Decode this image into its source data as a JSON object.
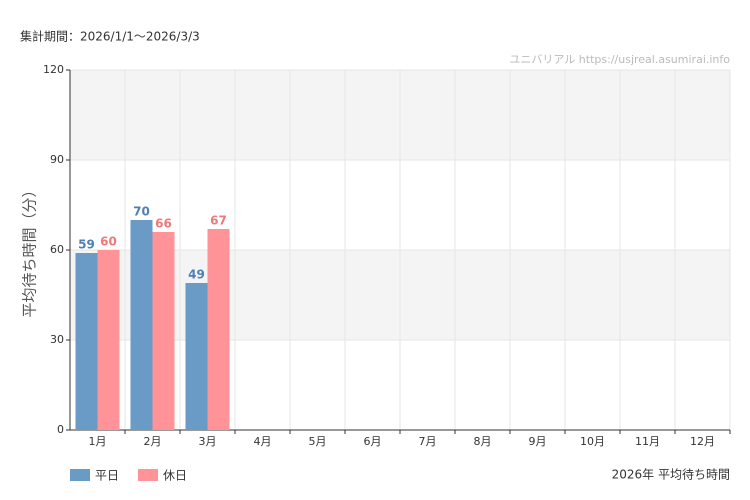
{
  "chart_data": {
    "type": "bar",
    "period": "集計期間：2026/1/1〜2026/3/3",
    "watermark": "ユニバリアル  https://usjreal.asumirai.info",
    "ylabel": "平均待ち時間（分）",
    "caption": "2026年 平均待ち時間",
    "categories": [
      "1月",
      "2月",
      "3月",
      "4月",
      "5月",
      "6月",
      "7月",
      "8月",
      "9月",
      "10月",
      "11月",
      "12月"
    ],
    "series": [
      {
        "name": "平日",
        "color": "#6a9ac6",
        "label_color": "#4e7fb5",
        "values": [
          59,
          70,
          49,
          null,
          null,
          null,
          null,
          null,
          null,
          null,
          null,
          null
        ]
      },
      {
        "name": "休日",
        "color": "#ff9398",
        "label_color": "#f07878",
        "values": [
          60,
          66,
          67,
          null,
          null,
          null,
          null,
          null,
          null,
          null,
          null,
          null
        ]
      }
    ],
    "ylim": [
      0,
      120
    ],
    "yticks": [
      0,
      30,
      60,
      90,
      120
    ],
    "grid": true
  }
}
